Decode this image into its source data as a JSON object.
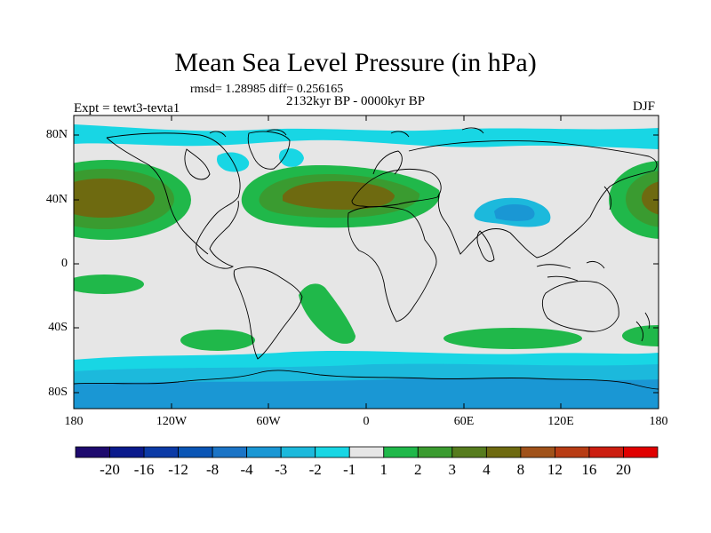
{
  "title": "Mean Sea Level Pressure (in hPa)",
  "stats": "rmsd= 1.28985 diff= 0.256165",
  "period": "2132kyr BP - 0000kyr BP",
  "experiment": "Expt = tewt3-tevta1",
  "season": "DJF",
  "lat_ticks": [
    "80N",
    "40N",
    "0",
    "40S",
    "80S"
  ],
  "lon_ticks": [
    "180",
    "120W",
    "60W",
    "0",
    "60E",
    "120E",
    "180"
  ],
  "colorbar": {
    "labels": [
      "-20",
      "-16",
      "-12",
      "-8",
      "-4",
      "-3",
      "-2",
      "-1",
      "1",
      "2",
      "3",
      "4",
      "8",
      "12",
      "16",
      "20"
    ],
    "colors": [
      "#1e0a6e",
      "#0a1a8c",
      "#0b3aa6",
      "#0a55b5",
      "#1b74c6",
      "#1a97d4",
      "#1cb9dc",
      "#18d6e4",
      "#e6e6e6",
      "#20b84a",
      "#3a9b30",
      "#567c1e",
      "#6e6a10",
      "#a0521a",
      "#b83c14",
      "#cc1e10",
      "#e00000"
    ]
  },
  "colors": {
    "background": "#e6e6e6",
    "ocean_low": "#18d6e4",
    "ocean_lower": "#1cb9dc",
    "southern_low": "#1a97d4",
    "high_green": "#20b84a",
    "high_dark": "#3a9b30",
    "high_brown": "#6e6a10",
    "coast": "#000000"
  }
}
